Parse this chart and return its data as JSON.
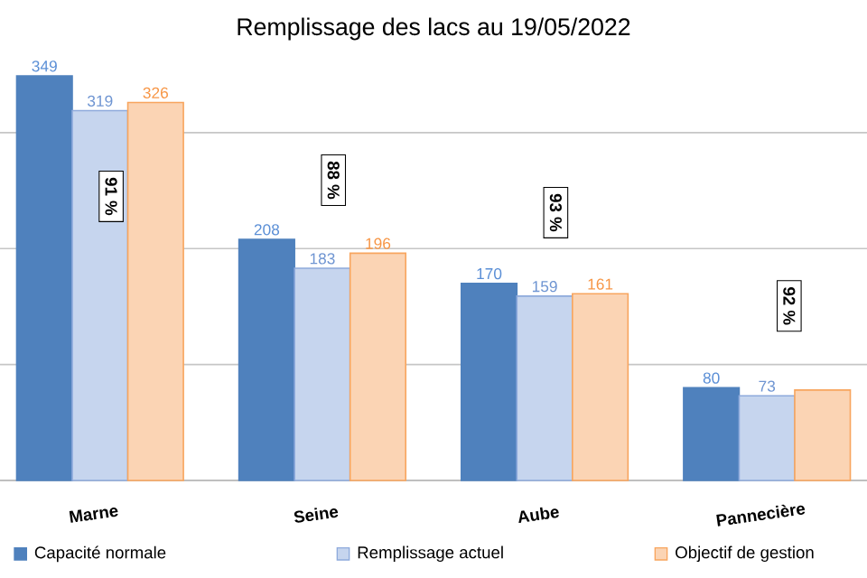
{
  "chart_data": {
    "type": "bar",
    "title": "Remplissage des lacs au 19/05/2022",
    "categories": [
      "Marne",
      "Seine",
      "Aube",
      "Pannecière"
    ],
    "series": [
      {
        "name": "Capacité normale",
        "color": "#4f81bd",
        "values": [
          349,
          208,
          170,
          80
        ],
        "value_labels": [
          "349",
          "208",
          "170",
          "80"
        ]
      },
      {
        "name": "Remplissage actuel",
        "color": "#c6d5ee",
        "values": [
          319,
          183,
          159,
          73
        ],
        "value_labels": [
          "319",
          "183",
          "159",
          "73"
        ]
      },
      {
        "name": "Objectif de gestion",
        "color": "#fbd4b4",
        "values": [
          326,
          196,
          161,
          78
        ],
        "value_labels": [
          "326",
          "196",
          "161",
          null
        ]
      }
    ],
    "ylim": [
      0,
      350
    ],
    "tick_labels": "x",
    "grid": "y",
    "legend": "bottom",
    "annotations": [
      "91 %",
      "88 %",
      "93 %",
      "92 %"
    ]
  }
}
